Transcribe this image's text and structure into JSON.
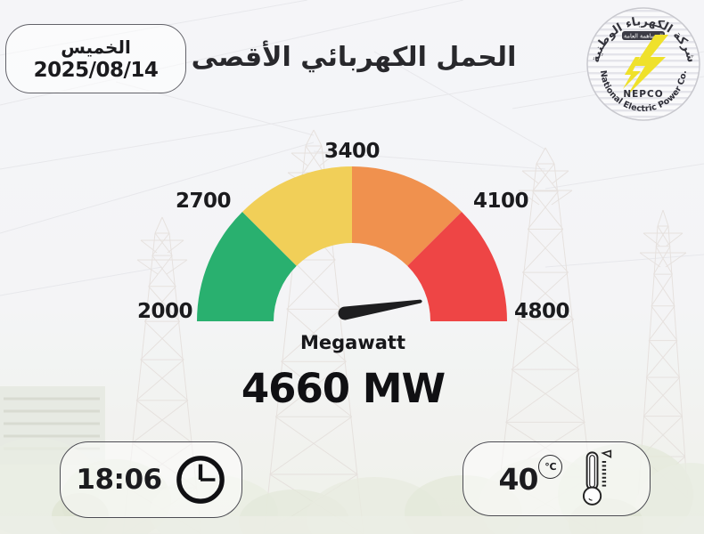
{
  "header": {
    "date_box": {
      "weekday": "الخميس",
      "date": "2025/08/14"
    },
    "title": "الحمل الكهربائي الأقصى",
    "logo": {
      "top_text": "شركة الكهرباء الوطنية",
      "banner_text": "المساهمة العامة",
      "abbr": "NEPCO",
      "bottom_text": "National Electric Power Co.",
      "bolt_color": "#efe12b"
    }
  },
  "chart_data": {
    "type": "gauge",
    "title": "الحمل الكهربائي الأقصى",
    "min": 2000,
    "max": 4800,
    "ticks": [
      2000,
      2700,
      3400,
      4100,
      4800
    ],
    "segments": [
      {
        "from": 2000,
        "to": 2700,
        "color": "#29b06f"
      },
      {
        "from": 2700,
        "to": 3400,
        "color": "#f1cf58"
      },
      {
        "from": 3400,
        "to": 4100,
        "color": "#f0914e"
      },
      {
        "from": 4100,
        "to": 4800,
        "color": "#ee4545"
      }
    ],
    "value": 4660,
    "unit": "MW",
    "needle_color": "#1e1e20"
  },
  "reading": {
    "unit_label": "Megawatt",
    "value_text": "4660 MW"
  },
  "footer": {
    "time_box": {
      "time": "18:06"
    },
    "temp_box": {
      "value": "40",
      "unit": "℃"
    }
  }
}
